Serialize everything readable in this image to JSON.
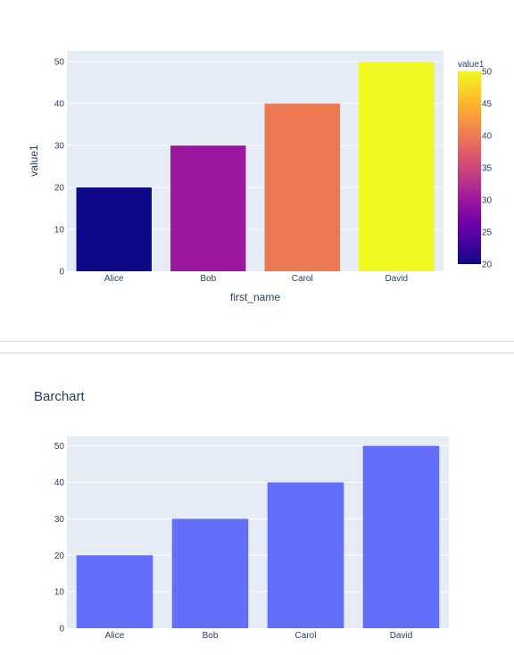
{
  "colors": {
    "plot_background": "#e5ecf6",
    "grid": "#ffffff",
    "text": "#2a3f5f",
    "uniform_bar": "#636efa",
    "colorscale": [
      "#0d0887",
      "#46039f",
      "#7201a8",
      "#9c179e",
      "#bd3786",
      "#d8576b",
      "#ed7953",
      "#fb9f3a",
      "#fdca26",
      "#f0f921"
    ]
  },
  "chart_data": [
    {
      "type": "bar",
      "title": "",
      "categories": [
        "Alice",
        "Bob",
        "Carol",
        "David"
      ],
      "series": [
        {
          "values": [
            20,
            30,
            40,
            50
          ]
        }
      ],
      "xlabel": "first_name",
      "ylabel": "value1",
      "ylim": [
        0,
        52.6
      ],
      "yticks": [
        0,
        10,
        20,
        30,
        40,
        50
      ],
      "grid": true,
      "colorbar": {
        "title": "value1",
        "range": [
          20,
          50
        ],
        "ticks": [
          20,
          25,
          30,
          35,
          40,
          45,
          50
        ],
        "colorscale": "plasma",
        "placement": "right"
      }
    },
    {
      "type": "bar",
      "title": "Barchart",
      "categories": [
        "Alice",
        "Bob",
        "Carol",
        "David"
      ],
      "series": [
        {
          "values": [
            20,
            30,
            40,
            50
          ]
        }
      ],
      "xlabel": "",
      "ylabel": "",
      "ylim": [
        0,
        52.6
      ],
      "yticks": [
        0,
        10,
        20,
        30,
        40,
        50
      ],
      "grid": true
    }
  ]
}
